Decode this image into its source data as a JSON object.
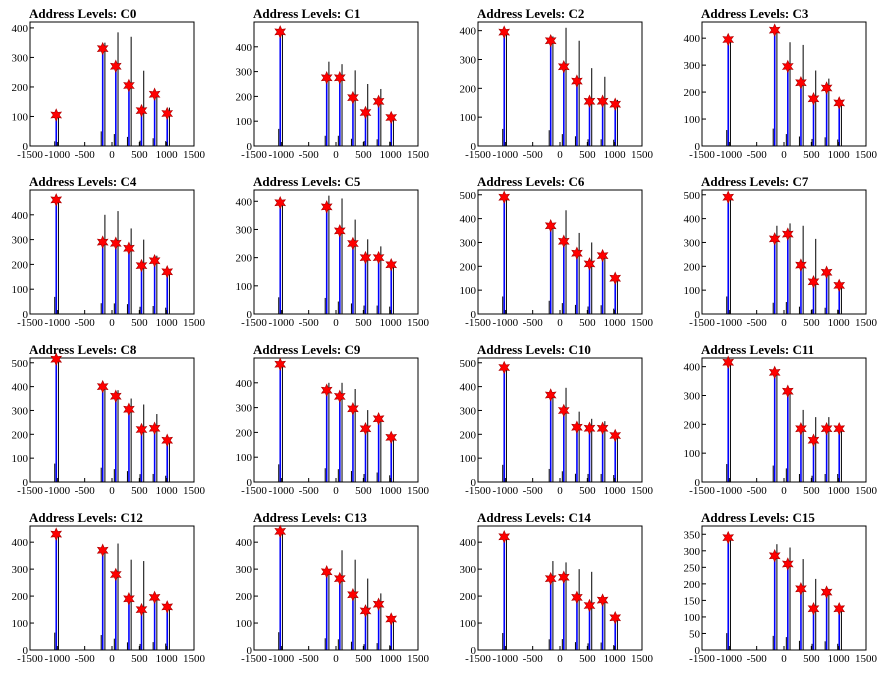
{
  "page": {
    "background": "#ffffff"
  },
  "colors": {
    "frame": "#000000",
    "blue_bars": "#0000ff",
    "black_bars": "#000000",
    "star_fill": "#ff0000",
    "star_stroke": "#aa0000"
  },
  "chart_data": [
    {
      "type": "bar",
      "title": "Address Levels: C0",
      "xlim": [
        -1500,
        1500
      ],
      "xticks": [
        -1500,
        -1000,
        -500,
        0,
        500,
        1000,
        1500
      ],
      "ylim": [
        0,
        420
      ],
      "yticks": [
        0,
        100,
        200,
        300,
        400
      ],
      "x": [
        -1020,
        -170,
        70,
        310,
        540,
        780,
        1010
      ],
      "peaks": [
        105,
        330,
        270,
        205,
        120,
        175,
        110
      ],
      "black_spikes": [
        110,
        350,
        385,
        370,
        255,
        180,
        130
      ]
    },
    {
      "type": "bar",
      "title": "Address Levels: C1",
      "xlim": [
        -1500,
        1500
      ],
      "xticks": [
        -1500,
        -1000,
        -500,
        0,
        500,
        1000,
        1500
      ],
      "ylim": [
        0,
        500
      ],
      "yticks": [
        0,
        100,
        200,
        300,
        400
      ],
      "x": [
        -1020,
        -170,
        70,
        310,
        540,
        780,
        1010
      ],
      "peaks": [
        460,
        275,
        275,
        195,
        135,
        180,
        115
      ],
      "black_spikes": [
        460,
        340,
        330,
        305,
        250,
        230,
        125
      ]
    },
    {
      "type": "bar",
      "title": "Address Levels: C2",
      "xlim": [
        -1500,
        1500
      ],
      "xticks": [
        -1500,
        -1000,
        -500,
        0,
        500,
        1000,
        1500
      ],
      "ylim": [
        0,
        430
      ],
      "yticks": [
        0,
        100,
        200,
        300,
        400
      ],
      "x": [
        -1020,
        -170,
        70,
        310,
        540,
        780,
        1010
      ],
      "peaks": [
        395,
        365,
        275,
        225,
        155,
        155,
        145
      ],
      "black_spikes": [
        400,
        380,
        410,
        365,
        270,
        240,
        160
      ]
    },
    {
      "type": "bar",
      "title": "Address Levels: C3",
      "xlim": [
        -1500,
        1500
      ],
      "xticks": [
        -1500,
        -1000,
        -500,
        0,
        500,
        1000,
        1500
      ],
      "ylim": [
        0,
        460
      ],
      "yticks": [
        0,
        100,
        200,
        300,
        400
      ],
      "x": [
        -1020,
        -170,
        70,
        310,
        540,
        780,
        1010
      ],
      "peaks": [
        395,
        430,
        295,
        235,
        175,
        215,
        160
      ],
      "black_spikes": [
        400,
        440,
        385,
        375,
        280,
        250,
        165
      ]
    },
    {
      "type": "bar",
      "title": "Address Levels: C4",
      "xlim": [
        -1500,
        1500
      ],
      "xticks": [
        -1500,
        -1000,
        -500,
        0,
        500,
        1000,
        1500
      ],
      "ylim": [
        0,
        500
      ],
      "yticks": [
        0,
        100,
        200,
        300,
        400
      ],
      "x": [
        -1020,
        -170,
        70,
        310,
        540,
        780,
        1010
      ],
      "peaks": [
        460,
        290,
        285,
        265,
        195,
        215,
        170
      ],
      "black_spikes": [
        460,
        400,
        415,
        345,
        300,
        235,
        180
      ]
    },
    {
      "type": "bar",
      "title": "Address Levels: C5",
      "xlim": [
        -1500,
        1500
      ],
      "xticks": [
        -1500,
        -1000,
        -500,
        0,
        500,
        1000,
        1500
      ],
      "ylim": [
        0,
        440
      ],
      "yticks": [
        0,
        100,
        200,
        300,
        400
      ],
      "x": [
        -1020,
        -170,
        70,
        310,
        540,
        780,
        1010
      ],
      "peaks": [
        395,
        380,
        295,
        250,
        200,
        200,
        175
      ],
      "black_spikes": [
        400,
        420,
        410,
        335,
        265,
        240,
        180
      ]
    },
    {
      "type": "bar",
      "title": "Address Levels: C6",
      "xlim": [
        -1500,
        1500
      ],
      "xticks": [
        -1500,
        -1000,
        -500,
        0,
        500,
        1000,
        1500
      ],
      "ylim": [
        0,
        520
      ],
      "yticks": [
        0,
        100,
        200,
        300,
        400,
        500
      ],
      "x": [
        -1020,
        -170,
        70,
        310,
        540,
        780,
        1010
      ],
      "peaks": [
        490,
        370,
        305,
        255,
        210,
        245,
        150
      ],
      "black_spikes": [
        490,
        370,
        435,
        340,
        300,
        255,
        160
      ]
    },
    {
      "type": "bar",
      "title": "Address Levels: C7",
      "xlim": [
        -1500,
        1500
      ],
      "xticks": [
        -1500,
        -1000,
        -500,
        0,
        500,
        1000,
        1500
      ],
      "ylim": [
        0,
        520
      ],
      "yticks": [
        0,
        100,
        200,
        300,
        400,
        500
      ],
      "x": [
        -1020,
        -170,
        70,
        310,
        540,
        780,
        1010
      ],
      "peaks": [
        490,
        315,
        335,
        205,
        135,
        175,
        120
      ],
      "black_spikes": [
        495,
        370,
        380,
        370,
        315,
        185,
        125
      ]
    },
    {
      "type": "bar",
      "title": "Address Levels: C8",
      "xlim": [
        -1500,
        1500
      ],
      "xticks": [
        -1500,
        -1000,
        -500,
        0,
        500,
        1000,
        1500
      ],
      "ylim": [
        0,
        520
      ],
      "yticks": [
        0,
        100,
        200,
        300,
        400,
        500
      ],
      "x": [
        -1020,
        -170,
        70,
        310,
        540,
        780,
        1010
      ],
      "peaks": [
        515,
        400,
        360,
        305,
        220,
        225,
        175
      ],
      "black_spikes": [
        520,
        400,
        385,
        350,
        325,
        285,
        185
      ]
    },
    {
      "type": "bar",
      "title": "Address Levels: C9",
      "xlim": [
        -1500,
        1500
      ],
      "xticks": [
        -1500,
        -1000,
        -500,
        0,
        500,
        1000,
        1500
      ],
      "ylim": [
        0,
        500
      ],
      "yticks": [
        0,
        100,
        200,
        300,
        400
      ],
      "x": [
        -1020,
        -170,
        70,
        310,
        540,
        780,
        1010
      ],
      "peaks": [
        475,
        370,
        345,
        295,
        215,
        255,
        180
      ],
      "black_spikes": [
        480,
        400,
        400,
        375,
        290,
        260,
        185
      ]
    },
    {
      "type": "bar",
      "title": "Address Levels: C10",
      "xlim": [
        -1500,
        1500
      ],
      "xticks": [
        -1500,
        -1000,
        -500,
        0,
        500,
        1000,
        1500
      ],
      "ylim": [
        0,
        520
      ],
      "yticks": [
        0,
        100,
        200,
        300,
        400,
        500
      ],
      "x": [
        -1020,
        -170,
        70,
        310,
        540,
        780,
        1010
      ],
      "peaks": [
        480,
        365,
        300,
        230,
        225,
        225,
        195
      ],
      "black_spikes": [
        485,
        370,
        395,
        295,
        265,
        255,
        195
      ]
    },
    {
      "type": "bar",
      "title": "Address Levels: C11",
      "xlim": [
        -1500,
        1500
      ],
      "xticks": [
        -1500,
        -1000,
        -500,
        0,
        500,
        1000,
        1500
      ],
      "ylim": [
        0,
        430
      ],
      "yticks": [
        0,
        100,
        200,
        300,
        400
      ],
      "x": [
        -1020,
        -170,
        70,
        310,
        540,
        780,
        1010
      ],
      "peaks": [
        415,
        380,
        315,
        185,
        145,
        185,
        185
      ],
      "black_spikes": [
        415,
        380,
        325,
        250,
        225,
        225,
        185
      ]
    },
    {
      "type": "bar",
      "title": "Address Levels: C12",
      "xlim": [
        -1500,
        1500
      ],
      "xticks": [
        -1500,
        -1000,
        -500,
        0,
        500,
        1000,
        1500
      ],
      "ylim": [
        0,
        460
      ],
      "yticks": [
        0,
        100,
        200,
        300,
        400
      ],
      "x": [
        -1020,
        -170,
        70,
        310,
        540,
        780,
        1010
      ],
      "peaks": [
        430,
        370,
        280,
        190,
        150,
        195,
        160
      ],
      "black_spikes": [
        430,
        375,
        395,
        335,
        330,
        205,
        165
      ]
    },
    {
      "type": "bar",
      "title": "Address Levels: C13",
      "xlim": [
        -1500,
        1500
      ],
      "xticks": [
        -1500,
        -1000,
        -500,
        0,
        500,
        1000,
        1500
      ],
      "ylim": [
        0,
        460
      ],
      "yticks": [
        0,
        100,
        200,
        300,
        400
      ],
      "x": [
        -1020,
        -170,
        70,
        310,
        540,
        780,
        1010
      ],
      "peaks": [
        440,
        290,
        265,
        205,
        145,
        170,
        115
      ],
      "black_spikes": [
        440,
        300,
        370,
        335,
        265,
        210,
        120
      ]
    },
    {
      "type": "bar",
      "title": "Address Levels: C14",
      "xlim": [
        -1500,
        1500
      ],
      "xticks": [
        -1500,
        -1000,
        -500,
        0,
        500,
        1000,
        1500
      ],
      "ylim": [
        0,
        460
      ],
      "yticks": [
        0,
        100,
        200,
        300,
        400
      ],
      "x": [
        -1020,
        -170,
        70,
        310,
        540,
        780,
        1010
      ],
      "peaks": [
        420,
        265,
        270,
        195,
        165,
        185,
        120
      ],
      "black_spikes": [
        425,
        330,
        325,
        300,
        290,
        195,
        125
      ]
    },
    {
      "type": "bar",
      "title": "Address Levels: C15",
      "xlim": [
        -1500,
        1500
      ],
      "xticks": [
        -1500,
        -1000,
        -500,
        0,
        500,
        1000,
        1500
      ],
      "ylim": [
        0,
        375
      ],
      "yticks": [
        0,
        50,
        100,
        150,
        200,
        250,
        300,
        350
      ],
      "x": [
        -1020,
        -170,
        70,
        310,
        540,
        780,
        1010
      ],
      "peaks": [
        340,
        285,
        260,
        185,
        125,
        175,
        125
      ],
      "black_spikes": [
        345,
        320,
        310,
        275,
        215,
        185,
        130
      ]
    }
  ]
}
